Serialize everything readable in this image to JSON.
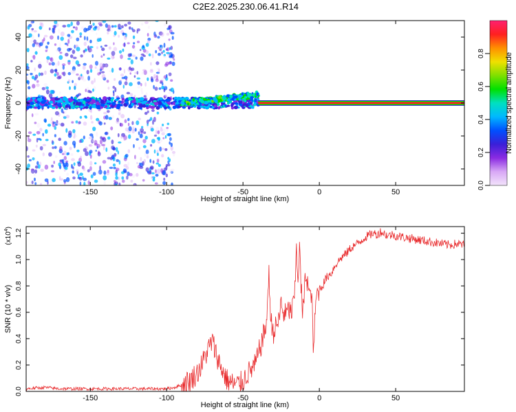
{
  "title": "C2E2.2025.230.06.41.R14",
  "top_panel": {
    "xlabel": "Height of straight line (km)",
    "ylabel": "Frequency (Hz)",
    "colorbar_label": "Normalized spectral amplitude"
  },
  "bottom_panel": {
    "xlabel": "Height of straight line (km)",
    "ylabel": "SNR (10 * v/v)",
    "exponent_label": "(x10",
    "exponent_power": "4",
    "exponent_close": ")"
  },
  "colors": {
    "snr_line": "#e8282a",
    "scatter_main": "#7a1fd8",
    "colorbar_stops": [
      "#f2e3fb",
      "#d8a8f5",
      "#8a2be2",
      "#3a1fd8",
      "#0050ff",
      "#00b8ff",
      "#00e0c0",
      "#00e000",
      "#7fe000",
      "#f0e000",
      "#ff9000",
      "#ff2020",
      "#ff2070"
    ]
  },
  "chart_data": [
    {
      "type": "scatter",
      "title": "C2E2.2025.230.06.41.R14",
      "xlabel": "Height of straight line (km)",
      "ylabel": "Frequency (Hz)",
      "xlim": [
        -192,
        95
      ],
      "ylim": [
        -50,
        50
      ],
      "xticks": [
        -150,
        -100,
        -50,
        0,
        50
      ],
      "yticks": [
        -40,
        -20,
        0,
        20,
        40
      ],
      "grid": false,
      "colorbar": {
        "label": "Normalized spectral amplitude",
        "range": [
          0,
          1
        ],
        "ticks": [
          "0.0",
          "0.2",
          "0.4",
          "0.6",
          "0.8"
        ],
        "tick_values": [
          0,
          0.2,
          0.4,
          0.6,
          0.8
        ]
      },
      "features": [
        {
          "name": "noise_scatter",
          "x_range": [
            -192,
            -95
          ],
          "y_range": [
            -50,
            50
          ],
          "amplitude": 0.1
        },
        {
          "name": "central_band",
          "x_range": [
            -192,
            -40
          ],
          "y_center": 0,
          "y_halfwidth": 3,
          "amplitude": 0.3
        },
        {
          "name": "rising_band",
          "x_range": [
            -90,
            -40
          ],
          "y_start": 0,
          "y_end": 5,
          "amplitude": 0.5
        },
        {
          "name": "strong_line",
          "x_range": [
            -40,
            95
          ],
          "y_center": 0,
          "amplitude": 0.9
        }
      ]
    },
    {
      "type": "line",
      "xlabel": "Height of straight line (km)",
      "ylabel": "SNR (10 * v/v)",
      "xlim": [
        -192,
        95
      ],
      "ylim": [
        0,
        1.25
      ],
      "y_scale_factor": "x10^4",
      "xticks": [
        -150,
        -100,
        -50,
        0,
        50
      ],
      "yticks": [
        0.0,
        0.2,
        0.4,
        0.6,
        0.8,
        1.0,
        1.2
      ],
      "grid": false,
      "series": [
        {
          "x": [
            -192,
            -180,
            -170,
            -160,
            -150,
            -140,
            -130,
            -120,
            -110,
            -100,
            -95,
            -90,
            -85,
            -80,
            -77,
            -75,
            -72,
            -70,
            -68,
            -65,
            -62,
            -60,
            -57,
            -55,
            -52,
            -50,
            -48,
            -45,
            -42,
            -40,
            -38,
            -36,
            -35,
            -34,
            -33,
            -32,
            -30,
            -28,
            -26,
            -25,
            -24,
            -22,
            -20,
            -18,
            -16,
            -15,
            -14,
            -13,
            -12,
            -11,
            -10,
            -9,
            -8,
            -6,
            -5,
            -4,
            -2,
            0,
            2,
            4,
            6,
            8,
            10,
            12,
            15,
            18,
            20,
            22,
            25,
            28,
            30,
            32,
            35,
            38,
            40,
            42,
            45,
            48,
            50,
            55,
            60,
            65,
            70,
            75,
            80,
            85,
            90,
            95
          ],
          "y": [
            0.02,
            0.03,
            0.02,
            0.02,
            0.02,
            0.02,
            0.02,
            0.02,
            0.02,
            0.02,
            0.03,
            0.05,
            0.08,
            0.14,
            0.2,
            0.26,
            0.34,
            0.38,
            0.3,
            0.2,
            0.12,
            0.08,
            0.06,
            0.05,
            0.06,
            0.08,
            0.12,
            0.16,
            0.2,
            0.28,
            0.36,
            0.45,
            0.5,
            0.6,
            0.95,
            0.55,
            0.45,
            0.5,
            0.55,
            0.7,
            0.6,
            0.58,
            0.62,
            0.6,
            0.75,
            1.1,
            0.85,
            1.1,
            0.8,
            0.6,
            0.7,
            0.9,
            0.85,
            0.7,
            0.78,
            0.3,
            0.72,
            0.78,
            0.8,
            0.85,
            0.88,
            0.9,
            0.95,
            0.98,
            1.02,
            1.05,
            1.08,
            1.1,
            1.12,
            1.15,
            1.17,
            1.18,
            1.2,
            1.19,
            1.21,
            1.2,
            1.18,
            1.19,
            1.18,
            1.17,
            1.16,
            1.15,
            1.14,
            1.13,
            1.12,
            1.11,
            1.12,
            1.11
          ]
        }
      ]
    }
  ]
}
